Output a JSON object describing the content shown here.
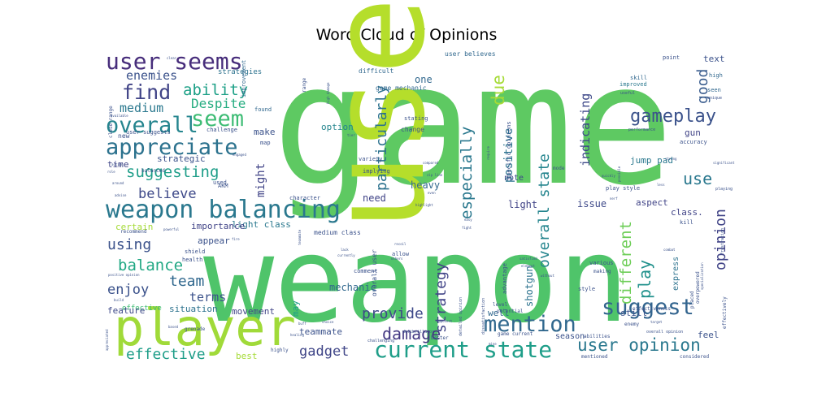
{
  "chart_data": {
    "type": "wordcloud",
    "title": "Word Cloud of Opinions",
    "background": "#ffffff",
    "words": [
      {
        "text": "game",
        "weight": 100,
        "color": "#5ec962"
      },
      {
        "text": "weapon",
        "weight": 92,
        "color": "#4fc46a"
      },
      {
        "text": "user",
        "weight": 80,
        "color": "#b5de2b"
      },
      {
        "text": "player",
        "weight": 46,
        "color": "#a0da39"
      },
      {
        "text": "weapon balancing",
        "weight": 26,
        "color": "#2a788e"
      },
      {
        "text": "user seems",
        "weight": 24,
        "color": "#472d7b"
      },
      {
        "text": "mention",
        "weight": 24,
        "color": "#31688e"
      },
      {
        "text": "suggest",
        "weight": 24,
        "color": "#32648e"
      },
      {
        "text": "current state",
        "weight": 24,
        "color": "#1f9e89"
      },
      {
        "text": "seem",
        "weight": 22,
        "color": "#3dbc74"
      },
      {
        "text": "appreciate",
        "weight": 22,
        "color": "#2c728e"
      },
      {
        "text": "overall",
        "weight": 22,
        "color": "#25858e"
      },
      {
        "text": "find",
        "weight": 20,
        "color": "#414487"
      },
      {
        "text": "gameplay",
        "weight": 18,
        "color": "#3b528b"
      },
      {
        "text": "user opinion",
        "weight": 18,
        "color": "#2a788e"
      },
      {
        "text": "damage",
        "weight": 17,
        "color": "#443983"
      },
      {
        "text": "suggesting",
        "weight": 17,
        "color": "#1f9e89"
      },
      {
        "text": "ability",
        "weight": 17,
        "color": "#1fa188"
      },
      {
        "text": "balance",
        "weight": 17,
        "color": "#22a884"
      },
      {
        "text": "effective",
        "weight": 16,
        "color": "#1f9e89"
      },
      {
        "text": "use",
        "weight": 16,
        "color": "#2a788e"
      },
      {
        "text": "good",
        "weight": 16,
        "color": "#375a8c"
      },
      {
        "text": "provide",
        "weight": 15,
        "color": "#3e4989"
      },
      {
        "text": "gadget",
        "weight": 15,
        "color": "#404688"
      },
      {
        "text": "opinion",
        "weight": 15,
        "color": "#414487"
      },
      {
        "text": "using",
        "weight": 15,
        "color": "#3b528b"
      },
      {
        "text": "team",
        "weight": 14,
        "color": "#31688e"
      },
      {
        "text": "play",
        "weight": 14,
        "color": "#21918c"
      },
      {
        "text": "enjoy",
        "weight": 14,
        "color": "#3b528b"
      },
      {
        "text": "Despite",
        "weight": 13,
        "color": "#26ad81"
      },
      {
        "text": "believe",
        "weight": 13,
        "color": "#3e4989"
      },
      {
        "text": "particularly",
        "weight": 14,
        "color": "#2c728e"
      },
      {
        "text": "especially",
        "weight": 14,
        "color": "#2a788e"
      },
      {
        "text": "due",
        "weight": 14,
        "color": "#a5db36"
      },
      {
        "text": "overall state",
        "weight": 13,
        "color": "#25858e"
      },
      {
        "text": "strategy",
        "weight": 13,
        "color": "#414487"
      },
      {
        "text": "positive",
        "weight": 12,
        "color": "#2c728e"
      },
      {
        "text": "indicating",
        "weight": 12,
        "color": "#3e4989"
      },
      {
        "text": "different",
        "weight": 14,
        "color": "#6ece58"
      },
      {
        "text": "enemies",
        "weight": 12,
        "color": "#3b528b"
      },
      {
        "text": "medium",
        "weight": 12,
        "color": "#2a788e"
      },
      {
        "text": "terms",
        "weight": 12,
        "color": "#3b528b"
      },
      {
        "text": "might",
        "weight": 11,
        "color": "#414487"
      },
      {
        "text": "effective",
        "weight": 11,
        "color": "#3dbc74"
      },
      {
        "text": "teammate",
        "weight": 9,
        "color": "#3b528b"
      },
      {
        "text": "mechanic",
        "weight": 9,
        "color": "#31688e"
      },
      {
        "text": "shotgun",
        "weight": 9,
        "color": "#2c728e"
      },
      {
        "text": "heavy",
        "weight": 9,
        "color": "#31688e"
      },
      {
        "text": "light",
        "weight": 8,
        "color": "#414487"
      },
      {
        "text": "issue",
        "weight": 8,
        "color": "#3e4989"
      },
      {
        "text": "need",
        "weight": 8,
        "color": "#414487"
      },
      {
        "text": "one",
        "weight": 8,
        "color": "#31688e"
      },
      {
        "text": "light class",
        "weight": 8,
        "color": "#2a788e"
      },
      {
        "text": "importance",
        "weight": 8,
        "color": "#414487"
      },
      {
        "text": "certain",
        "weight": 8,
        "color": "#a5db36"
      },
      {
        "text": "appear",
        "weight": 8,
        "color": "#3b528b"
      },
      {
        "text": "feature",
        "weight": 8,
        "color": "#3e4989"
      },
      {
        "text": "situation",
        "weight": 8,
        "color": "#2c728e"
      },
      {
        "text": "movement",
        "weight": 8,
        "color": "#414487"
      },
      {
        "text": "best",
        "weight": 8,
        "color": "#a5db36"
      },
      {
        "text": "may",
        "weight": 8,
        "color": "#1f9e89"
      },
      {
        "text": "option",
        "weight": 8,
        "color": "#25858e"
      },
      {
        "text": "make",
        "weight": 8,
        "color": "#3b528b"
      },
      {
        "text": "time",
        "weight": 8,
        "color": "#404688"
      },
      {
        "text": "strategic",
        "weight": 8,
        "color": "#3b528b"
      },
      {
        "text": "gun",
        "weight": 8,
        "color": "#414487"
      },
      {
        "text": "jump pad",
        "weight": 8,
        "color": "#2a788e"
      },
      {
        "text": "aspect",
        "weight": 8,
        "color": "#414487"
      },
      {
        "text": "class.",
        "weight": 8,
        "color": "#414487"
      },
      {
        "text": "still",
        "weight": 8,
        "color": "#3b528b"
      },
      {
        "text": "feel",
        "weight": 8,
        "color": "#3b528b"
      },
      {
        "text": "well",
        "weight": 8,
        "color": "#31688e"
      },
      {
        "text": "note",
        "weight": 8,
        "color": "#3e4989"
      },
      {
        "text": "text",
        "weight": 8,
        "color": "#3b528b"
      },
      {
        "text": "season",
        "weight": 8,
        "color": "#3b528b"
      },
      {
        "text": "express",
        "weight": 8,
        "color": "#2c728e"
      },
      {
        "text": "strategies",
        "weight": 6,
        "color": "#2c728e"
      },
      {
        "text": "user believes",
        "weight": 6,
        "color": "#31688e"
      },
      {
        "text": "difficult",
        "weight": 6,
        "color": "#31688e"
      },
      {
        "text": "game mechanic",
        "weight": 6,
        "color": "#31688e"
      },
      {
        "text": "improved",
        "weight": 6,
        "color": "#2a788e"
      },
      {
        "text": "skill",
        "weight": 6,
        "color": "#31688e"
      },
      {
        "text": "point",
        "weight": 6,
        "color": "#3b528b"
      },
      {
        "text": "high",
        "weight": 6,
        "color": "#31688e"
      },
      {
        "text": "seen",
        "weight": 6,
        "color": "#31688e"
      },
      {
        "text": "improvement",
        "weight": 6,
        "color": "#31688e"
      },
      {
        "text": "found",
        "weight": 6,
        "color": "#31688e"
      },
      {
        "text": "challenge",
        "weight": 6,
        "color": "#3b528b"
      },
      {
        "text": "user suggests",
        "weight": 6,
        "color": "#3b528b"
      },
      {
        "text": "new",
        "weight": 6,
        "color": "#3b528b"
      },
      {
        "text": "map",
        "weight": 6,
        "color": "#3b528b"
      },
      {
        "text": "stating",
        "weight": 6,
        "color": "#3b528b"
      },
      {
        "text": "change",
        "weight": 6,
        "color": "#3b528b"
      },
      {
        "text": "specific opinions",
        "weight": 6,
        "color": "#3b528b"
      },
      {
        "text": "variety",
        "weight": 6,
        "color": "#3b528b"
      },
      {
        "text": "implying",
        "weight": 6,
        "color": "#3b528b"
      },
      {
        "text": "accuracy",
        "weight": 6,
        "color": "#3b528b"
      },
      {
        "text": "performance",
        "weight": 6,
        "color": "#3b528b"
      },
      {
        "text": "play style",
        "weight": 6,
        "color": "#3b528b"
      },
      {
        "text": "mode",
        "weight": 6,
        "color": "#3b528b"
      },
      {
        "text": "used",
        "weight": 6,
        "color": "#3b528b"
      },
      {
        "text": "AKM",
        "weight": 6,
        "color": "#3b528b"
      },
      {
        "text": "balanced",
        "weight": 6,
        "color": "#3b528b"
      },
      {
        "text": "character",
        "weight": 6,
        "color": "#3b528b"
      },
      {
        "text": "medium class",
        "weight": 6,
        "color": "#3b528b"
      },
      {
        "text": "recommend",
        "weight": 6,
        "color": "#3b528b"
      },
      {
        "text": "shield",
        "weight": 6,
        "color": "#3b528b"
      },
      {
        "text": "health",
        "weight": 6,
        "color": "#3b528b"
      },
      {
        "text": "comment",
        "weight": 6,
        "color": "#3b528b"
      },
      {
        "text": "allow",
        "weight": 6,
        "color": "#3b528b"
      },
      {
        "text": "overall user",
        "weight": 6,
        "color": "#3b528b"
      },
      {
        "text": "advantage",
        "weight": 6,
        "color": "#3b528b"
      },
      {
        "text": "various",
        "weight": 6,
        "color": "#3b528b"
      },
      {
        "text": "making",
        "weight": 6,
        "color": "#3b528b"
      },
      {
        "text": "style",
        "weight": 6,
        "color": "#3b528b"
      },
      {
        "text": "potential",
        "weight": 6,
        "color": "#3b528b"
      },
      {
        "text": "level",
        "weight": 6,
        "color": "#3b528b"
      },
      {
        "text": "effectiveness",
        "weight": 6,
        "color": "#3b528b"
      },
      {
        "text": "enemy",
        "weight": 6,
        "color": "#3b528b"
      },
      {
        "text": "abilities",
        "weight": 6,
        "color": "#3b528b"
      },
      {
        "text": "game current",
        "weight": 6,
        "color": "#3b528b"
      },
      {
        "text": "overall opinion",
        "weight": 5,
        "color": "#3b528b"
      },
      {
        "text": "considered",
        "weight": 6,
        "color": "#3b528b"
      },
      {
        "text": "mentioned",
        "weight": 6,
        "color": "#3b528b"
      },
      {
        "text": "grenade",
        "weight": 6,
        "color": "#3b528b"
      },
      {
        "text": "highly",
        "weight": 6,
        "color": "#3b528b"
      },
      {
        "text": "better",
        "weight": 6,
        "color": "#3b528b"
      },
      {
        "text": "challenging",
        "weight": 5,
        "color": "#3b528b"
      },
      {
        "text": "kill",
        "weight": 6,
        "color": "#3b528b"
      },
      {
        "text": "playing",
        "weight": 5,
        "color": "#3b528b"
      },
      {
        "text": "frustration",
        "weight": 5,
        "color": "#3b528b"
      },
      {
        "text": "placed",
        "weight": 6,
        "color": "#3b528b"
      },
      {
        "text": "overpowered",
        "weight": 6,
        "color": "#3b528b"
      },
      {
        "text": "effectively",
        "weight": 6,
        "color": "#3b528b"
      },
      {
        "text": "close range",
        "weight": 5,
        "color": "#3b528b"
      },
      {
        "text": "range",
        "weight": 5,
        "color": "#3b528b"
      },
      {
        "text": "positive opinion",
        "weight": 4,
        "color": "#3b528b"
      },
      {
        "text": "detailed opinion",
        "weight": 5,
        "color": "#3b528b"
      },
      {
        "text": "dissatisfaction",
        "weight": 5,
        "color": "#3b528b"
      },
      {
        "text": "high damage",
        "weight": 4,
        "color": "#3b528b"
      },
      {
        "text": "useful",
        "weight": 5,
        "color": "#3b528b"
      },
      {
        "text": "unique",
        "weight": 5,
        "color": "#3b528b"
      },
      {
        "text": "clear",
        "weight": 4,
        "color": "#3b528b"
      },
      {
        "text": "zip line",
        "weight": 4,
        "color": "#3b528b"
      },
      {
        "text": "compared",
        "weight": 4,
        "color": "#3b528b"
      },
      {
        "text": "highlight",
        "weight": 4,
        "color": "#3b528b"
      },
      {
        "text": "even",
        "weight": 4,
        "color": "#3b528b"
      },
      {
        "text": "easy",
        "weight": 4,
        "color": "#3b528b"
      },
      {
        "text": "fight",
        "weight": 4,
        "color": "#3b528b"
      },
      {
        "text": "recoil",
        "weight": 4,
        "color": "#3b528b"
      },
      {
        "text": "lack",
        "weight": 4,
        "color": "#3b528b"
      },
      {
        "text": "currently",
        "weight": 4,
        "color": "#3b528b"
      },
      {
        "text": "others",
        "weight": 4,
        "color": "#3b528b"
      },
      {
        "text": "element",
        "weight": 4,
        "color": "#3b528b"
      },
      {
        "text": "satisfied",
        "weight": 4,
        "color": "#3b528b"
      },
      {
        "text": "without",
        "weight": 4,
        "color": "#3b528b"
      },
      {
        "text": "opponent",
        "weight": 4,
        "color": "#3b528b"
      },
      {
        "text": "choice",
        "weight": 4,
        "color": "#3b528b"
      },
      {
        "text": "buff",
        "weight": 4,
        "color": "#3b528b"
      },
      {
        "text": "based",
        "weight": 4,
        "color": "#3b528b"
      },
      {
        "text": "build",
        "weight": 4,
        "color": "#3b528b"
      },
      {
        "text": "action",
        "weight": 4,
        "color": "#3b528b"
      },
      {
        "text": "around",
        "weight": 4,
        "color": "#3b528b"
      },
      {
        "text": "advise",
        "weight": 4,
        "color": "#3b528b"
      },
      {
        "text": "role",
        "weight": 4,
        "color": "#3b528b"
      },
      {
        "text": "available",
        "weight": 4,
        "color": "#3b528b"
      },
      {
        "text": "engaged",
        "weight": 4,
        "color": "#3b528b"
      },
      {
        "text": "quickly",
        "weight": 4,
        "color": "#3b528b"
      },
      {
        "text": "possible",
        "weight": 4,
        "color": "#3b528b"
      },
      {
        "text": "less",
        "weight": 4,
        "color": "#3b528b"
      },
      {
        "text": "strong",
        "weight": 4,
        "color": "#3b528b"
      },
      {
        "text": "significant",
        "weight": 4,
        "color": "#3b528b"
      },
      {
        "text": "require",
        "weight": 4,
        "color": "#3b528b"
      },
      {
        "text": "tier",
        "weight": 4,
        "color": "#3b528b"
      },
      {
        "text": "nerf",
        "weight": 4,
        "color": "#3b528b"
      },
      {
        "text": "target",
        "weight": 4,
        "color": "#3b528b"
      },
      {
        "text": "fire",
        "weight": 4,
        "color": "#3b528b"
      },
      {
        "text": "powerful",
        "weight": 4,
        "color": "#3b528b"
      },
      {
        "text": "appreciated",
        "weight": 4,
        "color": "#3b528b"
      },
      {
        "text": "healing",
        "weight": 4,
        "color": "#3b528b"
      },
      {
        "text": "mine",
        "weight": 4,
        "color": "#3b528b"
      },
      {
        "text": "defibrillator",
        "weight": 4,
        "color": "#3b528b"
      },
      {
        "text": "specialization",
        "weight": 4,
        "color": "#3b528b"
      },
      {
        "text": "combat",
        "weight": 4,
        "color": "#3b528b"
      },
      {
        "text": "teammate",
        "weight": 4,
        "color": "#3b528b"
      }
    ]
  }
}
